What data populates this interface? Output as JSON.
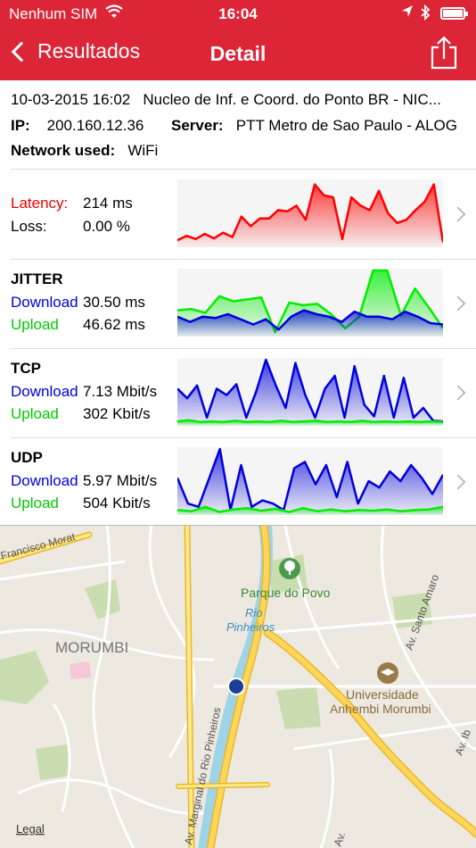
{
  "status": {
    "carrier": "Nenhum SIM",
    "time": "16:04"
  },
  "nav": {
    "back_label": "Resultados",
    "title": "Detail"
  },
  "info": {
    "datetime": "10-03-2015 16:02",
    "provider": "Nucleo de Inf. e Coord. do Ponto BR - NIC...",
    "ip_label": "IP:",
    "ip": "200.160.12.36",
    "server_label": "Server:",
    "server": "PTT Metro de Sao Paulo - ALOG",
    "network_label": "Network used:",
    "network": "WiFi"
  },
  "rows": {
    "latency": {
      "latency_label": "Latency:",
      "latency_value": "214 ms",
      "loss_label": "Loss:",
      "loss_value": "0.00 %"
    },
    "jitter": {
      "title": "JITTER",
      "download_label": "Download",
      "download_value": "30.50 ms",
      "upload_label": "Upload",
      "upload_value": "46.62 ms"
    },
    "tcp": {
      "title": "TCP",
      "download_label": "Download",
      "download_value": "7.13 Mbit/s",
      "upload_label": "Upload",
      "upload_value": "302 Kbit/s"
    },
    "udp": {
      "title": "UDP",
      "download_label": "Download",
      "download_value": "5.97 Mbit/s",
      "upload_label": "Upload",
      "upload_value": "504 Kbit/s"
    }
  },
  "sparklines": {
    "latency": {
      "color": "#ff0000",
      "values": [
        0.08,
        0.15,
        0.1,
        0.18,
        0.11,
        0.2,
        0.13,
        0.45,
        0.3,
        0.42,
        0.42,
        0.55,
        0.53,
        0.62,
        0.4,
        0.95,
        0.78,
        0.75,
        0.1,
        0.75,
        0.62,
        0.55,
        0.85,
        0.5,
        0.35,
        0.4,
        0.55,
        0.68,
        0.95,
        0.05
      ]
    },
    "jitter_download": {
      "color": "#0000dd",
      "values": [
        0.28,
        0.2,
        0.28,
        0.26,
        0.32,
        0.24,
        0.16,
        0.24,
        0.08,
        0.28,
        0.38,
        0.32,
        0.28,
        0.2,
        0.36,
        0.28,
        0.28,
        0.24,
        0.36,
        0.28,
        0.18,
        0.16
      ]
    },
    "jitter_upload": {
      "color": "#00ee00",
      "values": [
        0.38,
        0.4,
        0.34,
        0.6,
        0.52,
        0.55,
        0.58,
        0.04,
        0.5,
        0.46,
        0.48,
        0.32,
        0.1,
        0.28,
        1.0,
        1.0,
        0.3,
        0.72,
        0.42,
        0.1
      ]
    },
    "tcp_download": {
      "color": "#0000dd",
      "values": [
        0.55,
        0.4,
        0.6,
        0.1,
        0.55,
        0.45,
        0.62,
        0.1,
        0.5,
        1.0,
        0.6,
        0.25,
        0.95,
        0.45,
        0.1,
        0.55,
        0.75,
        0.1,
        0.9,
        0.3,
        0.12,
        0.75,
        0.1,
        0.72,
        0.1,
        0.25,
        0.05,
        0.04
      ]
    },
    "tcp_upload": {
      "color": "#00ee00",
      "values": [
        0.04,
        0.06,
        0.03,
        0.04,
        0.03,
        0.05,
        0.03,
        0.04,
        0.03,
        0.05,
        0.03,
        0.04,
        0.05,
        0.03,
        0.04,
        0.03,
        0.05,
        0.03,
        0.04,
        0.03,
        0.04,
        0.03,
        0.04,
        0.03
      ]
    },
    "udp_download": {
      "color": "#0000dd",
      "values": [
        0.55,
        0.15,
        0.1,
        0.55,
        1.0,
        0.05,
        0.75,
        0.1,
        0.2,
        0.15,
        0.05,
        0.7,
        0.8,
        0.45,
        0.75,
        0.25,
        0.8,
        0.15,
        0.5,
        0.4,
        0.65,
        0.5,
        0.75,
        0.55,
        0.3,
        0.6
      ]
    },
    "udp_upload": {
      "color": "#00ee00",
      "values": [
        0.05,
        0.03,
        0.1,
        0.02,
        0.06,
        0.08,
        0.04,
        0.07,
        0.02,
        0.08,
        0.03,
        0.06,
        0.03,
        0.05,
        0.04,
        0.06,
        0.03,
        0.05,
        0.06,
        0.1
      ]
    }
  },
  "map": {
    "labels": {
      "francisco": "Francisco Morat",
      "morumbi": "MORUMBI",
      "parque": "Parque do Povo",
      "rio": "Rio",
      "pinheiros": "Pinheiros",
      "universidade": "Universidade",
      "anhembi": "Anhembi Morumbi",
      "av_marginal": "Av. Marginal do Rio Pinheiros",
      "av_santo_amaro": "Av. Santo Amaro",
      "av_ib": "Av. Ib",
      "av_bottom": "Av.",
      "legal": "Legal"
    }
  }
}
